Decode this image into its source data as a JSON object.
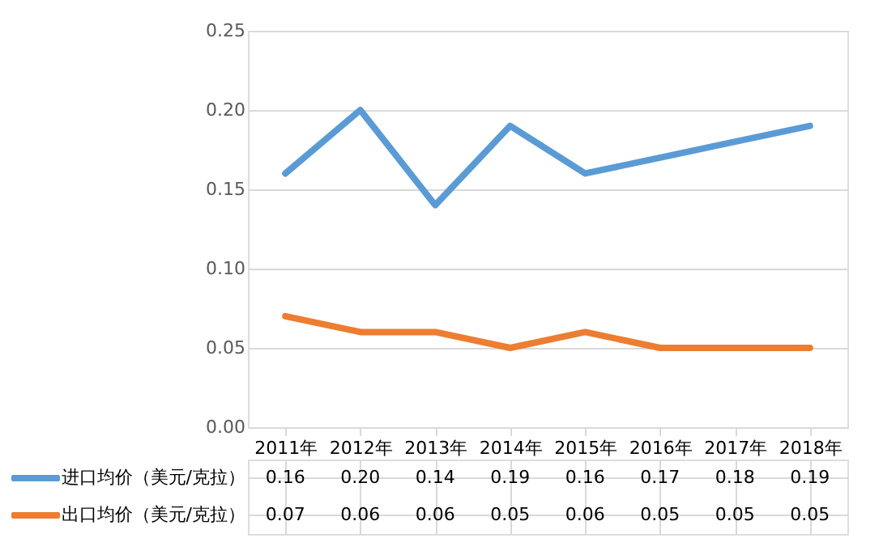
{
  "chart_data": {
    "type": "line",
    "categories": [
      "2011年",
      "2012年",
      "2013年",
      "2014年",
      "2015年",
      "2016年",
      "2017年",
      "2018年"
    ],
    "series": [
      {
        "name": "进口均价（美元/克拉）",
        "color": "#5b9bd5",
        "values": [
          0.16,
          0.2,
          0.14,
          0.19,
          0.16,
          0.17,
          0.18,
          0.19
        ],
        "value_labels": [
          "0.16",
          "0.20",
          "0.14",
          "0.19",
          "0.16",
          "0.17",
          "0.18",
          "0.19"
        ]
      },
      {
        "name": "出口均价（美元/克拉）",
        "color": "#ed7d31",
        "values": [
          0.07,
          0.06,
          0.06,
          0.05,
          0.06,
          0.05,
          0.05,
          0.05
        ],
        "value_labels": [
          "0.07",
          "0.06",
          "0.06",
          "0.05",
          "0.06",
          "0.05",
          "0.05",
          "0.05"
        ]
      }
    ],
    "ylim": [
      0,
      0.25
    ],
    "yticks": [
      {
        "value": 0,
        "label": "0.00"
      },
      {
        "value": 0.05,
        "label": "0.05"
      },
      {
        "value": 0.1,
        "label": "0.10"
      },
      {
        "value": 0.15,
        "label": "0.15"
      },
      {
        "value": 0.2,
        "label": "0.20"
      },
      {
        "value": 0.25,
        "label": "0.25"
      }
    ],
    "grid": "y",
    "legend": "bottom",
    "line_style": "solid"
  }
}
